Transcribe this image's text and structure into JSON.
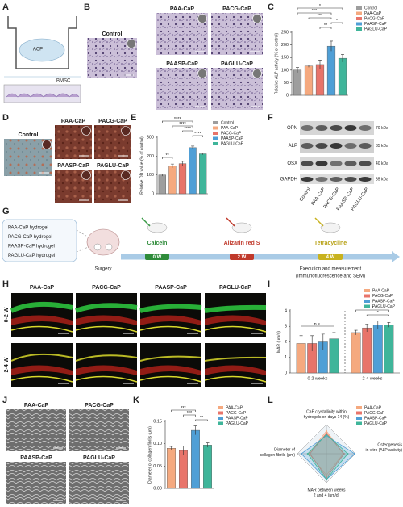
{
  "figure": {
    "panels": [
      "A",
      "B",
      "C",
      "D",
      "E",
      "F",
      "G",
      "H",
      "I",
      "J",
      "K",
      "L"
    ],
    "a": {
      "insert": "ACP",
      "cells": "BMSC"
    },
    "b_labels": [
      "Control",
      "PAA-CaP",
      "PACG-CaP",
      "PAASP-CaP",
      "PAGLU-CaP"
    ],
    "d_labels": [
      "Control",
      "PAA-CaP",
      "PACG-CaP",
      "PAASP-CaP",
      "PAGLU-CaP"
    ],
    "f": {
      "proteins": [
        "OPN",
        "ALP",
        "OSX",
        "GAPDH"
      ],
      "sizes": [
        "70 kDa",
        "35 kDa",
        "40 kDa",
        "35 kDa"
      ],
      "lanes": [
        "Control",
        "PAA-CaP",
        "PACG-CaP",
        "PAASP-CaP",
        "PAGLU-CaP"
      ]
    },
    "g": {
      "hydrogels": [
        "PAA-CaP hydrogel",
        "PACG-CaP hydrogel",
        "PAASP-CaP hydrogel",
        "PAGLU-CaP hydrogel"
      ],
      "surgery": "Surgery",
      "stages": [
        {
          "label": "Calcein",
          "time": "0 W"
        },
        {
          "label": "Alizarin red S",
          "time": "2 W"
        },
        {
          "label": "Tetracycline",
          "time": "4 W"
        }
      ],
      "execution": "Execution and measurement",
      "methods": "(Immunofluorescence and SEM)"
    },
    "h": {
      "columns": [
        "PAA-CaP",
        "PACG-CaP",
        "PAASP-CaP",
        "PAGLU-CaP"
      ],
      "rows": [
        "0-2 W",
        "2-4 W"
      ]
    },
    "j_labels": [
      "PAA-CaP",
      "PACG-CaP",
      "PAASP-CaP",
      "PAGLU-CaP"
    ]
  },
  "chart_data": [
    {
      "type": "bar",
      "y_label": "Relative ALP activity (% of control)",
      "categories": [
        "Control",
        "PAA-CaP",
        "PACG-CaP",
        "PAASP-CaP",
        "PAGLU-CaP"
      ],
      "values": [
        100,
        116,
        122,
        195,
        147
      ],
      "errors": [
        10,
        5,
        18,
        20,
        15
      ],
      "colors": [
        "#9e9e9e",
        "#f5a97f",
        "#e8746a",
        "#4f9fd6",
        "#3fb59a"
      ],
      "ylim": [
        0,
        250
      ],
      "yticks": [
        0,
        50,
        100,
        150,
        200,
        250
      ],
      "annotations": [
        "*",
        "***",
        "***",
        "*",
        "**"
      ]
    },
    {
      "type": "bar",
      "y_label": "Relative OD value (% of control)",
      "categories": [
        "Control",
        "PAA-CaP",
        "PACG-CaP",
        "PAASP-CaP",
        "PAGLU-CaP"
      ],
      "values": [
        100,
        148,
        160,
        245,
        212
      ],
      "errors": [
        6,
        10,
        12,
        8,
        5
      ],
      "colors": [
        "#9e9e9e",
        "#f5a97f",
        "#e8746a",
        "#4f9fd6",
        "#3fb59a"
      ],
      "ylim": [
        0,
        300
      ],
      "yticks": [
        0,
        100,
        200,
        300
      ],
      "annotations": [
        "****",
        "**",
        "****",
        "****",
        "****"
      ]
    },
    {
      "type": "bar",
      "y_label": "MAR (μm/d)",
      "categories": [
        "0-2 weeks",
        "2-4 weeks"
      ],
      "series": [
        {
          "name": "PAA-CaP",
          "color": "#f5a97f",
          "values": [
            1.9,
            2.6
          ],
          "errors": [
            0.5,
            0.15
          ]
        },
        {
          "name": "PACG-CaP",
          "color": "#e8746a",
          "values": [
            1.9,
            2.9
          ],
          "errors": [
            0.5,
            0.25
          ]
        },
        {
          "name": "PAASP-CaP",
          "color": "#4f9fd6",
          "values": [
            2.0,
            3.1
          ],
          "errors": [
            0.5,
            0.25
          ]
        },
        {
          "name": "PAGLU-CaP",
          "color": "#3fb59a",
          "values": [
            2.2,
            3.1
          ],
          "errors": [
            0.4,
            0.15
          ]
        }
      ],
      "ylim": [
        0,
        4
      ],
      "yticks": [
        0,
        1,
        2,
        3,
        4
      ],
      "annotations": [
        "n.s.",
        "*",
        "*"
      ]
    },
    {
      "type": "bar",
      "y_label": "Diameter of collagen fibrils (μm)",
      "categories": [
        "PAA-CaP",
        "PACG-CaP",
        "PAASP-CaP",
        "PAGLU-CaP"
      ],
      "values": [
        0.09,
        0.085,
        0.13,
        0.097
      ],
      "errors": [
        0.004,
        0.01,
        0.01,
        0.005
      ],
      "colors": [
        "#f5a97f",
        "#e8746a",
        "#4f9fd6",
        "#3fb59a"
      ],
      "ylim": [
        0,
        0.15
      ],
      "yticks": [
        {
          "value": 0,
          "label": "0.00"
        },
        {
          "value": 0.05,
          "label": "0.05"
        },
        {
          "value": 0.1,
          "label": "0.10"
        },
        {
          "value": 0.15,
          "label": "0.15"
        }
      ],
      "annotations": [
        "***",
        "***",
        "**"
      ]
    },
    {
      "type": "radar",
      "axes": [
        {
          "label": [
            "CaP crystallinity within",
            "hydrogels on days 14 (%)"
          ],
          "lim": [
            0,
            100
          ]
        },
        {
          "label": [
            "Osteogenesis",
            "in vitro (ALP activity)"
          ],
          "lim": [
            0,
            200
          ]
        },
        {
          "label": [
            "MAR between weeks",
            "2 and 4 (μm/d)"
          ],
          "lim": [
            0,
            3.5
          ]
        },
        {
          "label": [
            "Diameter of",
            "collagen fibrils (μm)"
          ],
          "lim": [
            0,
            0.15
          ]
        }
      ],
      "series": [
        {
          "name": "PAA-CaP",
          "color": "#f5a97f",
          "values": [
            78,
            116,
            2.6,
            0.09
          ]
        },
        {
          "name": "PACG-CaP",
          "color": "#e8746a",
          "values": [
            71,
            122,
            2.9,
            0.085
          ]
        },
        {
          "name": "PAASP-CaP",
          "color": "#4f9fd6",
          "values": [
            62,
            195,
            3.1,
            0.13
          ]
        },
        {
          "name": "PAGLU-CaP",
          "color": "#3fb59a",
          "values": [
            66,
            147,
            3.1,
            0.097
          ]
        }
      ]
    }
  ]
}
